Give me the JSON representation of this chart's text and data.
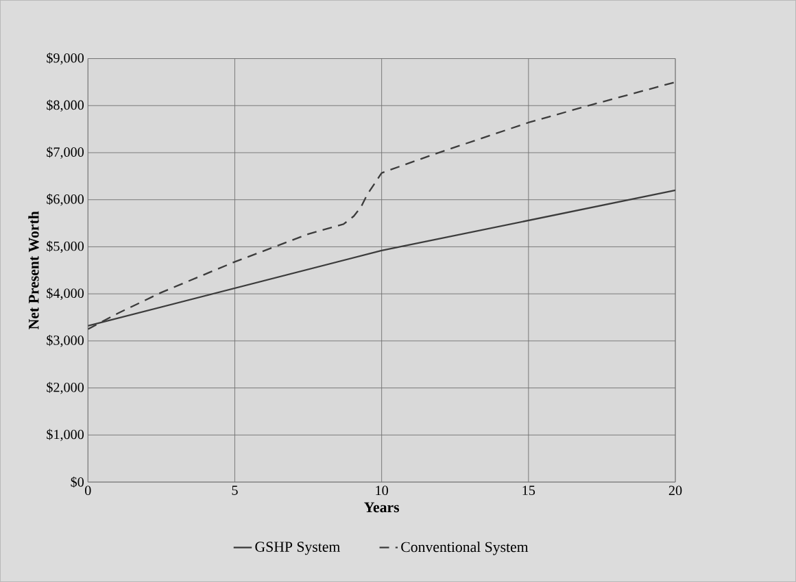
{
  "chart_data": {
    "type": "line",
    "xlabel": "Years",
    "ylabel": "Net Present Worth",
    "xlim": [
      0,
      20
    ],
    "xticks": [
      0,
      5,
      10,
      15,
      20
    ],
    "ylim": [
      0,
      9000
    ],
    "yticks": [
      {
        "value": 0,
        "label": "$0"
      },
      {
        "value": 1000,
        "label": "$1,000"
      },
      {
        "value": 2000,
        "label": "$2,000"
      },
      {
        "value": 3000,
        "label": "$3,000"
      },
      {
        "value": 4000,
        "label": "$4,000"
      },
      {
        "value": 5000,
        "label": "$5,000"
      },
      {
        "value": 6000,
        "label": "$6,000"
      },
      {
        "value": 7000,
        "label": "$7,000"
      },
      {
        "value": 8000,
        "label": "$8,000"
      },
      {
        "value": 9000,
        "label": "$9,000"
      }
    ],
    "grid": true,
    "legend": "bottom",
    "marker": "none",
    "series": [
      {
        "name": "GSHP System",
        "color": "#3c3c3c",
        "line_style": "solid",
        "x": [
          0,
          10,
          20
        ],
        "values": [
          3320,
          4920,
          6200
        ]
      },
      {
        "name": "Conventional System",
        "color": "#3c3c3c",
        "line_style": "dashed",
        "x": [
          0,
          1,
          2.5,
          5,
          7.5,
          8.7,
          9.05,
          9.3,
          9.5,
          10,
          11.8,
          15,
          17.1,
          20
        ],
        "values": [
          3250,
          3580,
          4030,
          4680,
          5270,
          5480,
          5650,
          5850,
          6100,
          6570,
          6970,
          7640,
          8010,
          8500
        ]
      }
    ]
  }
}
